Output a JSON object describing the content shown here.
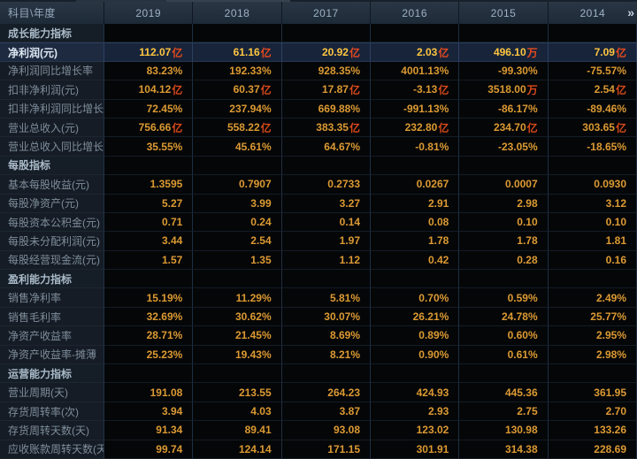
{
  "header": {
    "corner_label": "科目\\年度",
    "years": [
      "2019",
      "2018",
      "2017",
      "2016",
      "2015",
      "2014"
    ],
    "more_icon": "»"
  },
  "colors": {
    "header_bg": "#1d2a38",
    "label_column_bg": "#151c25",
    "value_bg": "#050607",
    "value_orange": "#dc9a33",
    "highlight_row_bg": "#18243a",
    "highlight_gold": "#ffc640",
    "unit_red": "#da4a1b",
    "grid_line_blue": "#1e2f45"
  },
  "table": {
    "rows": [
      {
        "type": "section",
        "label": "成长能力指标"
      },
      {
        "type": "data",
        "label": "净利润(元)",
        "highlight": true,
        "values": [
          "112.07亿",
          "61.16亿",
          "20.92亿",
          "2.03亿",
          "496.10万",
          "7.09亿"
        ]
      },
      {
        "type": "data",
        "label": "净利润同比增长率",
        "values": [
          "83.23%",
          "192.33%",
          "928.35%",
          "4001.13%",
          "-99.30%",
          "-75.57%"
        ]
      },
      {
        "type": "data",
        "label": "扣非净利润(元)",
        "values": [
          "104.12亿",
          "60.37亿",
          "17.87亿",
          "-3.13亿",
          "3518.00万",
          "2.54亿"
        ]
      },
      {
        "type": "data",
        "label": "扣非净利润同比增长率",
        "values": [
          "72.45%",
          "237.94%",
          "669.88%",
          "-991.13%",
          "-86.17%",
          "-89.46%"
        ]
      },
      {
        "type": "data",
        "label": "营业总收入(元)",
        "values": [
          "756.66亿",
          "558.22亿",
          "383.35亿",
          "232.80亿",
          "234.70亿",
          "303.65亿"
        ]
      },
      {
        "type": "data",
        "label": "营业总收入同比增长率",
        "values": [
          "35.55%",
          "45.61%",
          "64.67%",
          "-0.81%",
          "-23.05%",
          "-18.65%"
        ]
      },
      {
        "type": "section",
        "label": "每股指标"
      },
      {
        "type": "data",
        "label": "基本每股收益(元)",
        "values": [
          "1.3595",
          "0.7907",
          "0.2733",
          "0.0267",
          "0.0007",
          "0.0930"
        ]
      },
      {
        "type": "data",
        "label": "每股净资产(元)",
        "values": [
          "5.27",
          "3.99",
          "3.27",
          "2.91",
          "2.98",
          "3.12"
        ]
      },
      {
        "type": "data",
        "label": "每股资本公积金(元)",
        "values": [
          "0.71",
          "0.24",
          "0.14",
          "0.08",
          "0.10",
          "0.10"
        ]
      },
      {
        "type": "data",
        "label": "每股未分配利润(元)",
        "values": [
          "3.44",
          "2.54",
          "1.97",
          "1.78",
          "1.78",
          "1.81"
        ]
      },
      {
        "type": "data",
        "label": "每股经营现金流(元)",
        "values": [
          "1.57",
          "1.35",
          "1.12",
          "0.42",
          "0.28",
          "0.16"
        ]
      },
      {
        "type": "section",
        "label": "盈利能力指标"
      },
      {
        "type": "data",
        "label": "销售净利率",
        "values": [
          "15.19%",
          "11.29%",
          "5.81%",
          "0.70%",
          "0.59%",
          "2.49%"
        ]
      },
      {
        "type": "data",
        "label": "销售毛利率",
        "values": [
          "32.69%",
          "30.62%",
          "30.07%",
          "26.21%",
          "24.78%",
          "25.77%"
        ]
      },
      {
        "type": "data",
        "label": "净资产收益率",
        "values": [
          "28.71%",
          "21.45%",
          "8.69%",
          "0.89%",
          "0.60%",
          "2.95%"
        ]
      },
      {
        "type": "data",
        "label": "净资产收益率-摊薄",
        "values": [
          "25.23%",
          "19.43%",
          "8.21%",
          "0.90%",
          "0.61%",
          "2.98%"
        ]
      },
      {
        "type": "section",
        "label": "运营能力指标"
      },
      {
        "type": "data",
        "label": "营业周期(天)",
        "values": [
          "191.08",
          "213.55",
          "264.23",
          "424.93",
          "445.36",
          "361.95"
        ]
      },
      {
        "type": "data",
        "label": "存货周转率(次)",
        "values": [
          "3.94",
          "4.03",
          "3.87",
          "2.93",
          "2.75",
          "2.70"
        ]
      },
      {
        "type": "data",
        "label": "存货周转天数(天)",
        "values": [
          "91.34",
          "89.41",
          "93.08",
          "123.02",
          "130.98",
          "133.26"
        ]
      },
      {
        "type": "data",
        "label": "应收账款周转天数(天)",
        "values": [
          "99.74",
          "124.14",
          "171.15",
          "301.91",
          "314.38",
          "228.69"
        ]
      }
    ]
  }
}
